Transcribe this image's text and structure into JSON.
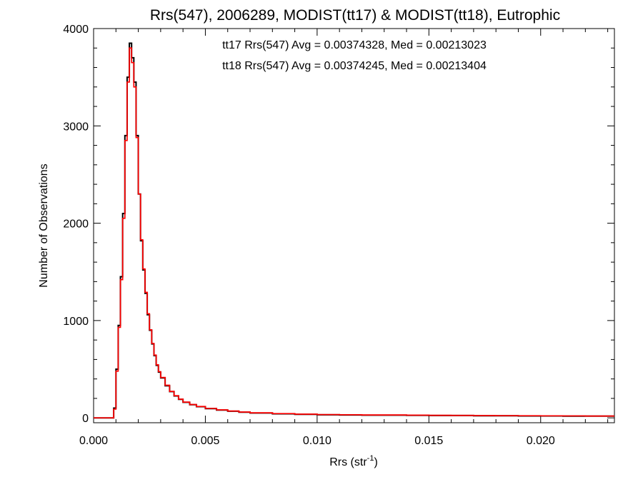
{
  "chart_data": {
    "type": "histogram",
    "title": "Rrs(547), 2006289, MODIST(tt17) & MODIST(tt18), Eutrophic",
    "xlabel": "Rrs (str",
    "xlabel_sup": "-1",
    "xlabel_end": ")",
    "ylabel": "Number of Observations",
    "xlim": [
      0.0,
      0.0233
    ],
    "ylim": [
      -50,
      4000
    ],
    "xticks": [
      0.0,
      0.005,
      0.01,
      0.015,
      0.02
    ],
    "xtick_labels": [
      "0.000",
      "0.005",
      "0.010",
      "0.015",
      "0.020"
    ],
    "yticks": [
      0,
      1000,
      2000,
      3000,
      4000
    ],
    "ytick_labels": [
      "0",
      "1000",
      "2000",
      "3000",
      "4000"
    ],
    "grid": false,
    "annotations": [
      {
        "text": "tt17 Rrs(547) Avg = 0.00374328, Med = 0.00213023",
        "color": "#000000"
      },
      {
        "text": "tt18 Rrs(547) Avg = 0.00374245, Med = 0.00213404",
        "color": "#ff0000"
      }
    ],
    "series": [
      {
        "color": "#000000",
        "x": [
          0.0,
          0.0008,
          0.0009,
          0.001,
          0.0011,
          0.0012,
          0.0013,
          0.0014,
          0.0015,
          0.0016,
          0.0017,
          0.0018,
          0.0019,
          0.002,
          0.0021,
          0.0022,
          0.0023,
          0.0024,
          0.0025,
          0.0026,
          0.0027,
          0.0028,
          0.0029,
          0.003,
          0.0032,
          0.0034,
          0.0036,
          0.0038,
          0.004,
          0.0043,
          0.0046,
          0.005,
          0.0055,
          0.006,
          0.0065,
          0.007,
          0.008,
          0.009,
          0.01,
          0.011,
          0.012,
          0.013,
          0.014,
          0.015,
          0.016,
          0.017,
          0.018,
          0.019,
          0.02,
          0.021,
          0.022,
          0.023
        ],
        "values": [
          0,
          0,
          100,
          500,
          950,
          1450,
          2100,
          2900,
          3500,
          3850,
          3700,
          3450,
          2900,
          2300,
          1820,
          1520,
          1280,
          1060,
          900,
          760,
          640,
          540,
          470,
          410,
          330,
          270,
          225,
          190,
          160,
          135,
          115,
          95,
          80,
          68,
          58,
          50,
          42,
          36,
          32,
          30,
          28,
          28,
          26,
          24,
          24,
          22,
          22,
          20,
          20,
          18,
          18,
          18
        ]
      },
      {
        "color": "#ff0000",
        "x": [
          0.0,
          0.0008,
          0.0009,
          0.001,
          0.0011,
          0.0012,
          0.0013,
          0.0014,
          0.0015,
          0.0016,
          0.0017,
          0.0018,
          0.0019,
          0.002,
          0.0021,
          0.0022,
          0.0023,
          0.0024,
          0.0025,
          0.0026,
          0.0027,
          0.0028,
          0.0029,
          0.003,
          0.0032,
          0.0034,
          0.0036,
          0.0038,
          0.004,
          0.0043,
          0.0046,
          0.005,
          0.0055,
          0.006,
          0.0065,
          0.007,
          0.008,
          0.009,
          0.01,
          0.011,
          0.012,
          0.013,
          0.014,
          0.015,
          0.016,
          0.017,
          0.018,
          0.019,
          0.02,
          0.021,
          0.022,
          0.023
        ],
        "values": [
          0,
          0,
          90,
          480,
          930,
          1420,
          2050,
          2850,
          3450,
          3800,
          3650,
          3400,
          2880,
          2300,
          1830,
          1530,
          1290,
          1070,
          905,
          765,
          645,
          545,
          475,
          415,
          335,
          272,
          228,
          192,
          162,
          137,
          117,
          97,
          82,
          70,
          60,
          52,
          44,
          38,
          34,
          32,
          30,
          30,
          28,
          26,
          25,
          24,
          23,
          22,
          21,
          20,
          19,
          19
        ]
      }
    ]
  }
}
